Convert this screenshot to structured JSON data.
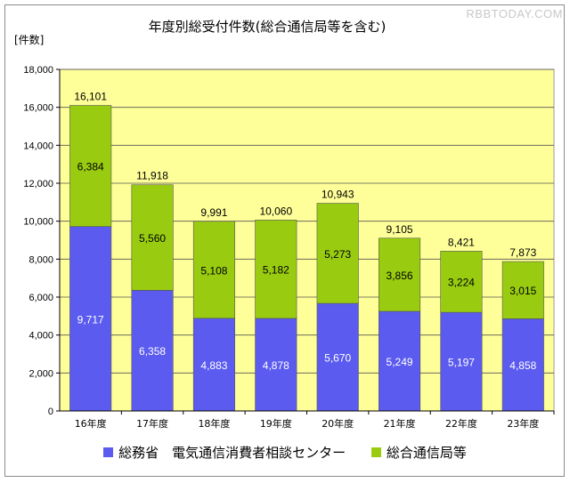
{
  "watermark": "RBBTODAY.COM",
  "chart_data": {
    "type": "bar",
    "stacked": true,
    "title": "年度別総受付件数(総合通信局等を含む)",
    "ylabel": "[件数]",
    "xlabel": "",
    "ylim": [
      0,
      18000
    ],
    "yticks": [
      "0",
      "2,000",
      "4,000",
      "6,000",
      "8,000",
      "10,000",
      "12,000",
      "14,000",
      "16,000",
      "18,000"
    ],
    "ytick_values": [
      0,
      2000,
      4000,
      6000,
      8000,
      10000,
      12000,
      14000,
      16000,
      18000
    ],
    "grid": true,
    "legend_position": "bottom",
    "categories": [
      "16年度",
      "17年度",
      "18年度",
      "19年度",
      "20年度",
      "21年度",
      "22年度",
      "23年度"
    ],
    "series": [
      {
        "name": "総務省　電気通信消費者相談センター",
        "color": "#5b5bf0",
        "values": [
          9717,
          6358,
          4883,
          4878,
          5670,
          5249,
          5197,
          4858
        ],
        "labels": [
          "9,717",
          "6,358",
          "4,883",
          "4,878",
          "5,670",
          "5,249",
          "5,197",
          "4,858"
        ]
      },
      {
        "name": "総合通信局等",
        "color": "#99cc11",
        "values": [
          6384,
          5560,
          5108,
          5182,
          5273,
          3856,
          3224,
          3015
        ],
        "labels": [
          "6,384",
          "5,560",
          "5,108",
          "5,182",
          "5,273",
          "3,856",
          "3,224",
          "3,015"
        ]
      }
    ],
    "totals": [
      16101,
      11918,
      9991,
      10060,
      10943,
      9105,
      8421,
      7873
    ],
    "total_labels": [
      "16,101",
      "11,918",
      "9,991",
      "10,060",
      "10,943",
      "9,105",
      "8,421",
      "7,873"
    ],
    "plot_background": "#ffff99"
  }
}
